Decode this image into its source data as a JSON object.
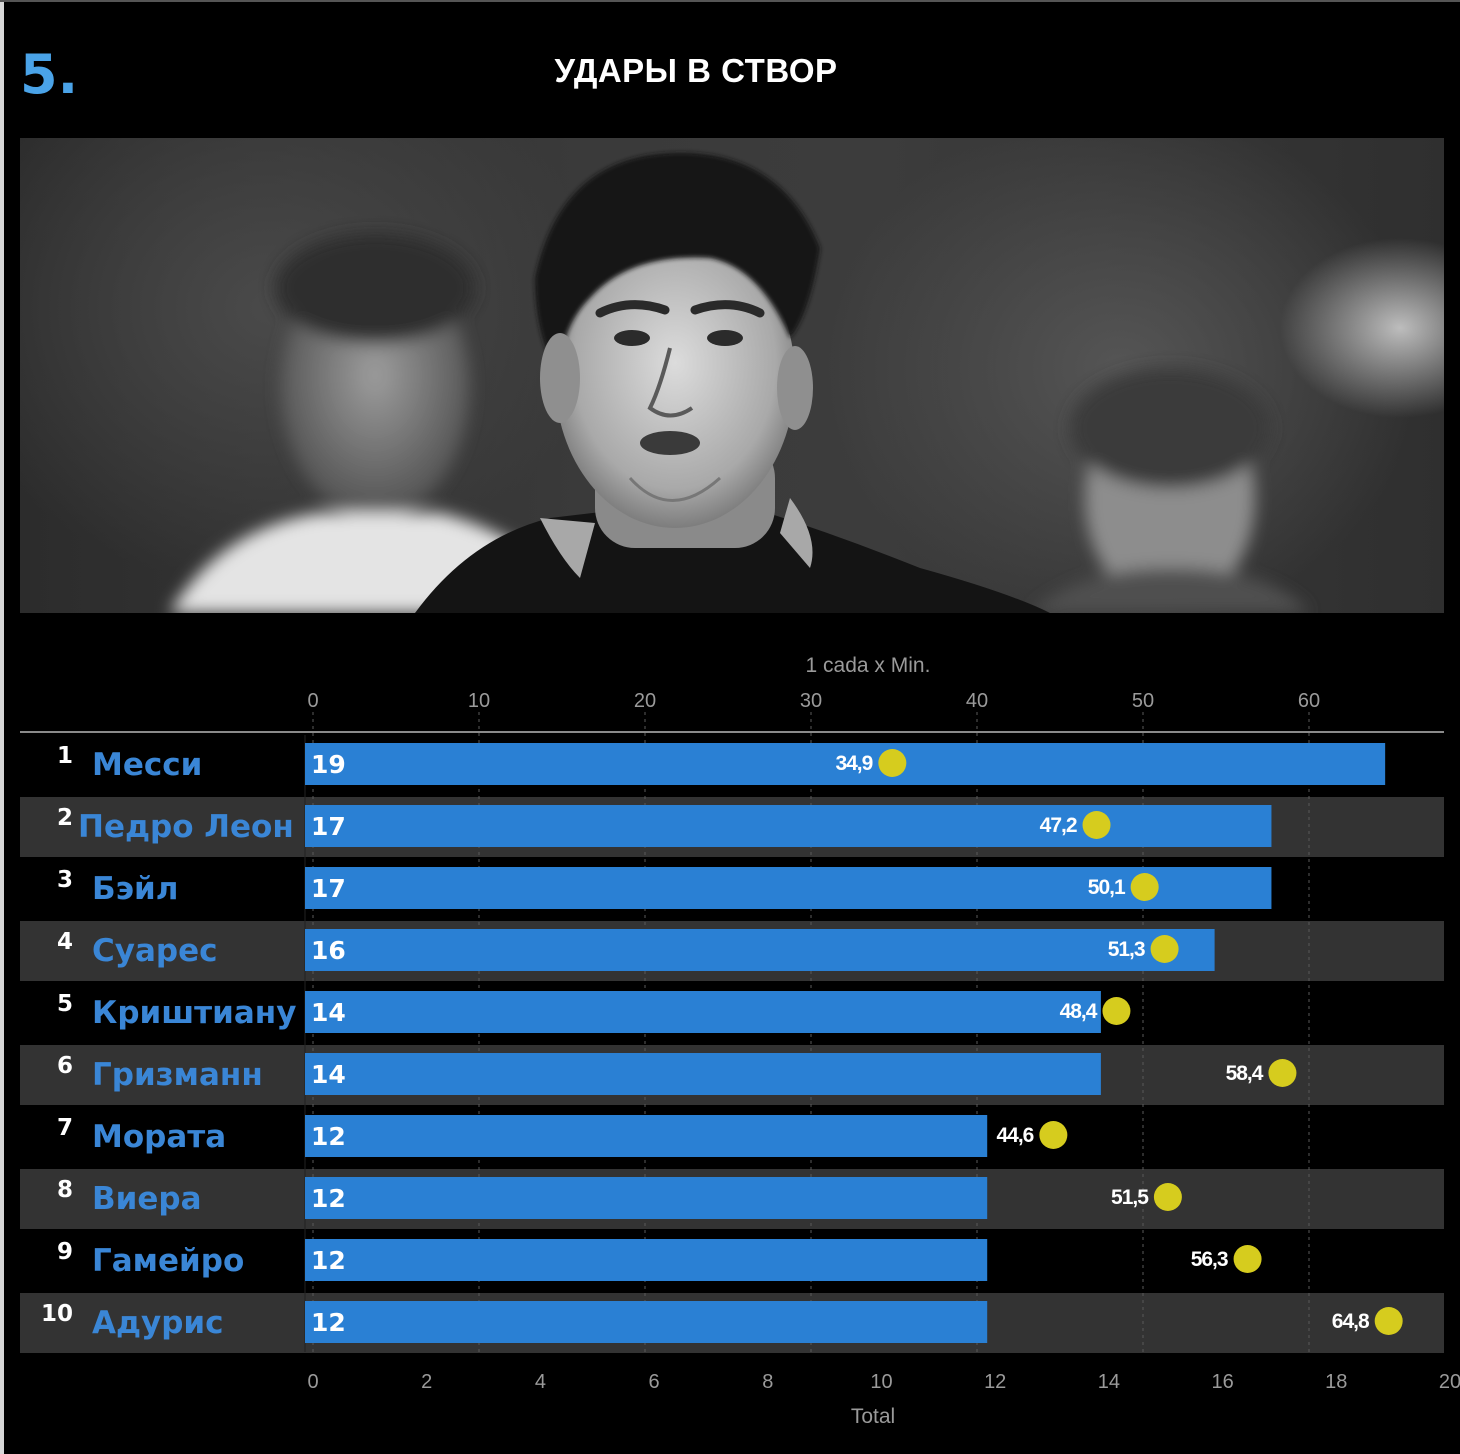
{
  "header": {
    "number": "5.",
    "title": "УДАРЫ В СТВОР"
  },
  "photo": {
    "description_icon": "player-portrait-photo"
  },
  "colors": {
    "background": "#000000",
    "row_alt": "#333333",
    "bar": "#2a80d4",
    "dot": "#d6cc1e",
    "name": "#3a86d6",
    "number_accent": "#4aa3e8"
  },
  "chart_data": {
    "type": "bar",
    "orientation": "horizontal",
    "categories": [
      "Месси",
      "Педро Леон",
      "Бэйл",
      "Суарес",
      "Криштиану",
      "Гризманн",
      "Мората",
      "Виера",
      "Гамейро",
      "Адурис"
    ],
    "ranks": [
      "1",
      "2",
      "3",
      "4",
      "5",
      "6",
      "7",
      "8",
      "9",
      "10"
    ],
    "series": [
      {
        "name": "Total",
        "values": [
          19,
          17,
          17,
          16,
          14,
          14,
          12,
          12,
          12,
          12
        ],
        "value_labels": [
          "19",
          "17",
          "17",
          "16",
          "14",
          "14",
          "12",
          "12",
          "12",
          "12"
        ]
      },
      {
        "name": "1 cada x Min.",
        "values": [
          34.9,
          47.2,
          50.1,
          51.3,
          48.4,
          58.4,
          44.6,
          51.5,
          56.3,
          64.8
        ],
        "value_labels": [
          "34,9",
          "47,2",
          "50,1",
          "51,3",
          "48,4",
          "58,4",
          "44,6",
          "51,5",
          "56,3",
          "64,8"
        ]
      }
    ],
    "bottom_axis": {
      "title": "Total",
      "range": [
        0,
        20
      ],
      "ticks": [
        "0",
        "2",
        "4",
        "6",
        "8",
        "10",
        "12",
        "14",
        "16",
        "18",
        "20"
      ]
    },
    "top_axis": {
      "title": "1 cada x Min.",
      "range": [
        0,
        68.5
      ],
      "ticks": [
        "0",
        "10",
        "20",
        "30",
        "40",
        "50",
        "60"
      ]
    },
    "grid": true
  }
}
